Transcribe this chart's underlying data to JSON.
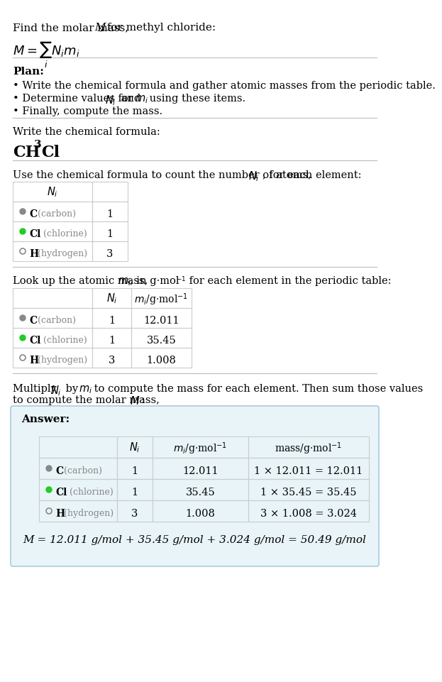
{
  "title_line1": "Find the molar mass, ",
  "title_M": "M",
  "title_line2": ", for methyl chloride:",
  "formula_label": "M = ∑ Nᵢmᵢ",
  "formula_sub": "i",
  "bg_color": "#ffffff",
  "text_color": "#000000",
  "gray_color": "#555555",
  "light_gray": "#aaaaaa",
  "green_color": "#22cc22",
  "answer_bg": "#e8f4f8",
  "answer_border": "#aaccdd",
  "table_border": "#cccccc",
  "elements": [
    "C (carbon)",
    "Cl (chlorine)",
    "H (hydrogen)"
  ],
  "element_symbols": [
    "C",
    "Cl",
    "H"
  ],
  "element_names": [
    "carbon",
    "chlorine",
    "hydrogen"
  ],
  "dot_colors": [
    "#888888",
    "#22cc22",
    "none"
  ],
  "dot_filled": [
    true,
    true,
    false
  ],
  "N_i": [
    1,
    1,
    3
  ],
  "m_i": [
    "12.011",
    "35.45",
    "1.008"
  ],
  "mass_expr": [
    "1 × 12.011 = 12.011",
    "1 × 35.45 = 35.45",
    "3 × 1.008 = 3.024"
  ],
  "final_eq": "M = 12.011 g/mol + 35.45 g/mol + 3.024 g/mol = 50.49 g/mol",
  "section_texts": [
    "Plan:",
    "• Write the chemical formula and gather atomic masses from the periodic table.",
    "• Determine values for Nᵢ and mᵢ using these items.",
    "• Finally, compute the mass.",
    "Write the chemical formula:",
    "CH₃Cl",
    "Use the chemical formula to count the number of atoms, Nᵢ, for each element:",
    "Look up the atomic mass, mᵢ, in g·mol⁻¹ for each element in the periodic table:",
    "Multiply Nᵢ by mᵢ to compute the mass for each element. Then sum those values\nto compute the molar mass, M:"
  ]
}
